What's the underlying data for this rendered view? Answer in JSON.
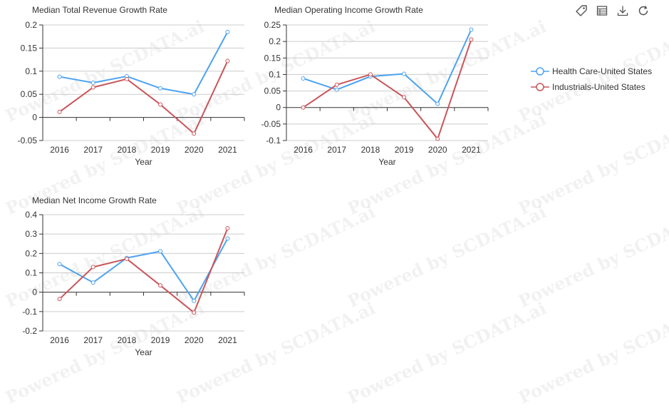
{
  "colors": {
    "health_care": "#4da3f0",
    "industrials": "#c9555a",
    "axis": "#333333",
    "grid": "#cccccc"
  },
  "watermark_text": "Powered by SCDATA.ai",
  "toolbox": [
    {
      "icon": "price-tag-icon"
    },
    {
      "icon": "data-view-icon"
    },
    {
      "icon": "download-icon"
    },
    {
      "icon": "refresh-icon"
    }
  ],
  "legend": [
    "Health Care-United States",
    "Industrials-United States"
  ],
  "chart_data": [
    {
      "type": "line",
      "title": "Median Total Revenue Growth Rate",
      "xlabel": "Year",
      "ylabel": "",
      "categories": [
        "2016",
        "2017",
        "2018",
        "2019",
        "2020",
        "2021"
      ],
      "ylim": [
        -0.05,
        0.2
      ],
      "yticks": [
        -0.05,
        0,
        0.05,
        0.1,
        0.15,
        0.2
      ],
      "ytick_labels": [
        "-0.05",
        "0",
        "0.05",
        "0.1",
        "0.15",
        "0.2"
      ],
      "grid": true,
      "series": [
        {
          "name": "Health Care-United States",
          "values": [
            0.088,
            0.075,
            0.089,
            0.063,
            0.05,
            0.185
          ]
        },
        {
          "name": "Industrials-United States",
          "values": [
            0.012,
            0.065,
            0.083,
            0.028,
            -0.035,
            0.122
          ]
        }
      ]
    },
    {
      "type": "line",
      "title": "Median Operating Income Growth Rate",
      "xlabel": "Year",
      "ylabel": "",
      "categories": [
        "2016",
        "2017",
        "2018",
        "2019",
        "2020",
        "2021"
      ],
      "ylim": [
        -0.1,
        0.25
      ],
      "yticks": [
        -0.1,
        -0.05,
        0,
        0.05,
        0.1,
        0.15,
        0.2,
        0.25
      ],
      "ytick_labels": [
        "-0.1",
        "-0.05",
        "0",
        "0.05",
        "0.1",
        "0.15",
        "0.2",
        "0.25"
      ],
      "grid": true,
      "series": [
        {
          "name": "Health Care-United States",
          "values": [
            0.088,
            0.054,
            0.094,
            0.102,
            0.011,
            0.236
          ]
        },
        {
          "name": "Industrials-United States",
          "values": [
            0.0,
            0.069,
            0.1,
            0.031,
            -0.095,
            0.206
          ]
        }
      ]
    },
    {
      "type": "line",
      "title": "Median Net Income Growth Rate",
      "xlabel": "Year",
      "ylabel": "",
      "categories": [
        "2016",
        "2017",
        "2018",
        "2019",
        "2020",
        "2021"
      ],
      "ylim": [
        -0.2,
        0.4
      ],
      "yticks": [
        -0.2,
        -0.1,
        0,
        0.1,
        0.2,
        0.3,
        0.4
      ],
      "ytick_labels": [
        "-0.2",
        "-0.1",
        "0",
        "0.1",
        "0.2",
        "0.3",
        "0.4"
      ],
      "grid": true,
      "series": [
        {
          "name": "Health Care-United States",
          "values": [
            0.145,
            0.05,
            0.177,
            0.211,
            -0.045,
            0.277
          ]
        },
        {
          "name": "Industrials-United States",
          "values": [
            -0.035,
            0.13,
            0.172,
            0.035,
            -0.105,
            0.33
          ]
        }
      ]
    }
  ]
}
